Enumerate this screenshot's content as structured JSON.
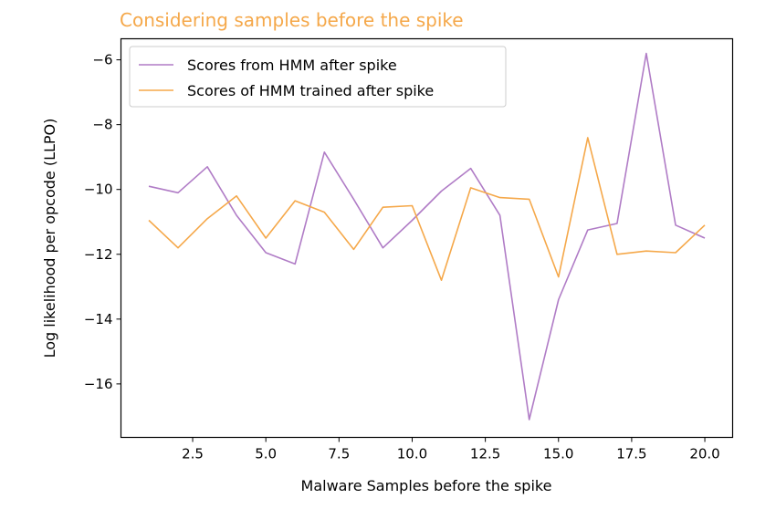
{
  "chart_data": {
    "type": "line",
    "title": "Considering samples before the spike",
    "title_color": "#f5a84a",
    "xlabel": "Malware Samples before the spike",
    "ylabel": "Log likelihood per opcode (LLPO)",
    "xlim": [
      0.05,
      20.95
    ],
    "ylim": [
      -17.65,
      -5.35
    ],
    "xticks": [
      2.5,
      5.0,
      7.5,
      10.0,
      12.5,
      15.0,
      17.5,
      20.0
    ],
    "xtick_labels": [
      "2.5",
      "5.0",
      "7.5",
      "10.0",
      "12.5",
      "15.0",
      "17.5",
      "20.0"
    ],
    "yticks": [
      -16,
      -14,
      -12,
      -10,
      -8,
      -6
    ],
    "ytick_labels": [
      "−16",
      "−14",
      "−12",
      "−10",
      "−8",
      "−6"
    ],
    "grid": false,
    "legend_position": "top-left",
    "x": [
      1,
      2,
      3,
      4,
      5,
      6,
      7,
      8,
      9,
      10,
      11,
      12,
      13,
      14,
      15,
      16,
      17,
      18,
      19,
      20
    ],
    "series": [
      {
        "name": "Scores from HMM after spike",
        "color": "#b07cc6",
        "values": [
          -9.9,
          -10.1,
          -9.3,
          -10.8,
          -11.95,
          -12.3,
          -8.85,
          -10.3,
          -11.8,
          -10.95,
          -10.05,
          -9.35,
          -10.8,
          -17.1,
          -13.4,
          -11.25,
          -11.05,
          -5.8,
          -11.1,
          -11.5
        ]
      },
      {
        "name": "Scores of HMM trained after spike",
        "color": "#f5a84a",
        "values": [
          -10.95,
          -11.8,
          -10.9,
          -10.2,
          -11.5,
          -10.35,
          -10.7,
          -11.85,
          -10.55,
          -10.5,
          -12.8,
          -9.95,
          -10.25,
          -10.3,
          -12.7,
          -8.4,
          -12.0,
          -11.9,
          -11.95,
          -11.1
        ]
      }
    ]
  }
}
